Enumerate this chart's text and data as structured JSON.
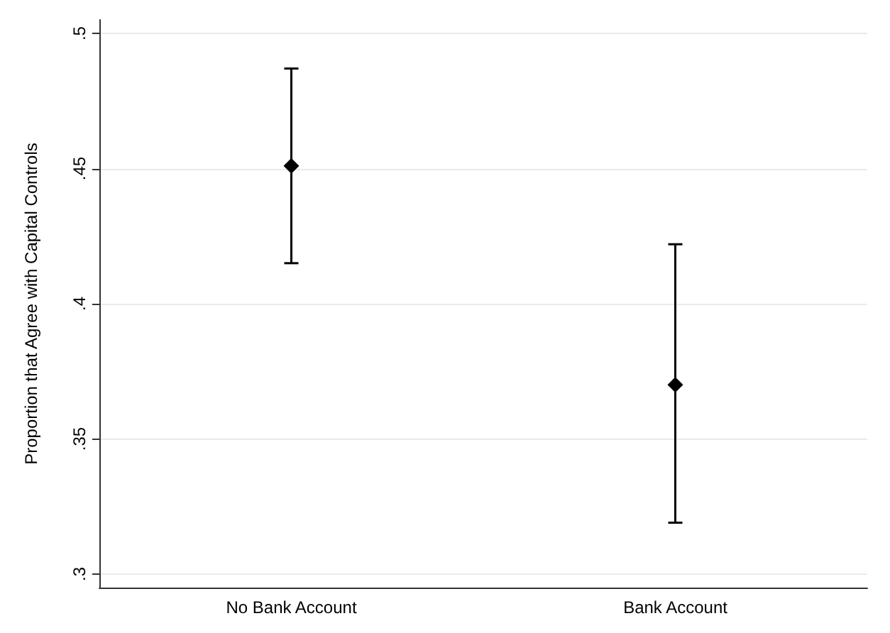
{
  "chart_data": {
    "type": "scatter",
    "ylabel": "Proportion that Agree with Capital Controls",
    "categories": [
      "No Bank Account",
      "Bank Account"
    ],
    "values": [
      0.451,
      0.37
    ],
    "errors": [
      [
        0.415,
        0.487
      ],
      [
        0.319,
        0.422
      ]
    ],
    "color": "#000000",
    "marker": "diamond",
    "grid": "y",
    "ylim": [
      0.295,
      0.505
    ],
    "yticks": [
      {
        "value": 0.3,
        "label": ".3"
      },
      {
        "value": 0.35,
        "label": ".35"
      },
      {
        "value": 0.4,
        "label": ".4"
      },
      {
        "value": 0.45,
        "label": ".45"
      },
      {
        "value": 0.5,
        "label": ".5"
      }
    ]
  }
}
